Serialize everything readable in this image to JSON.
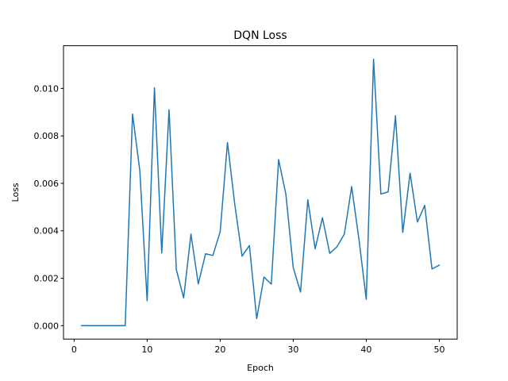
{
  "chart_data": {
    "type": "line",
    "title": "DQN Loss",
    "xlabel": "Epoch",
    "ylabel": "Loss",
    "xlim": [
      -1.45,
      52.45
    ],
    "ylim": [
      -0.000565,
      0.0118
    ],
    "grid": false,
    "legend": "none",
    "x_ticks": [
      0,
      10,
      20,
      30,
      40,
      50
    ],
    "x_tick_labels": [
      "0",
      "10",
      "20",
      "30",
      "40",
      "50"
    ],
    "y_ticks": [
      0,
      0.002,
      0.004,
      0.006,
      0.008,
      0.01
    ],
    "y_tick_labels": [
      "0.000",
      "0.002",
      "0.004",
      "0.006",
      "0.008",
      "0.010"
    ],
    "series": [
      {
        "color": "#1f77b4",
        "x": [
          1,
          2,
          3,
          4,
          5,
          6,
          7,
          8,
          9,
          10,
          11,
          12,
          13,
          14,
          15,
          16,
          17,
          18,
          19,
          20,
          21,
          22,
          23,
          24,
          25,
          26,
          27,
          28,
          29,
          30,
          31,
          32,
          33,
          34,
          35,
          36,
          37,
          38,
          39,
          40,
          41,
          42,
          43,
          44,
          45,
          46,
          47,
          48,
          49,
          50
        ],
        "y": [
          0.0,
          0.0,
          0.0,
          0.0,
          0.0,
          0.0,
          0.0,
          0.00892,
          0.00653,
          0.00105,
          0.01003,
          0.00306,
          0.0091,
          0.00236,
          0.00117,
          0.00386,
          0.00176,
          0.00303,
          0.00296,
          0.00396,
          0.00772,
          0.00511,
          0.00293,
          0.00338,
          0.0003,
          0.00205,
          0.00175,
          0.007,
          0.00553,
          0.00245,
          0.00142,
          0.00531,
          0.00324,
          0.00455,
          0.00305,
          0.00333,
          0.00386,
          0.00586,
          0.00364,
          0.00111,
          0.01123,
          0.00555,
          0.00564,
          0.00885,
          0.00393,
          0.00643,
          0.00437,
          0.00507,
          0.00239,
          0.00255
        ]
      }
    ]
  }
}
